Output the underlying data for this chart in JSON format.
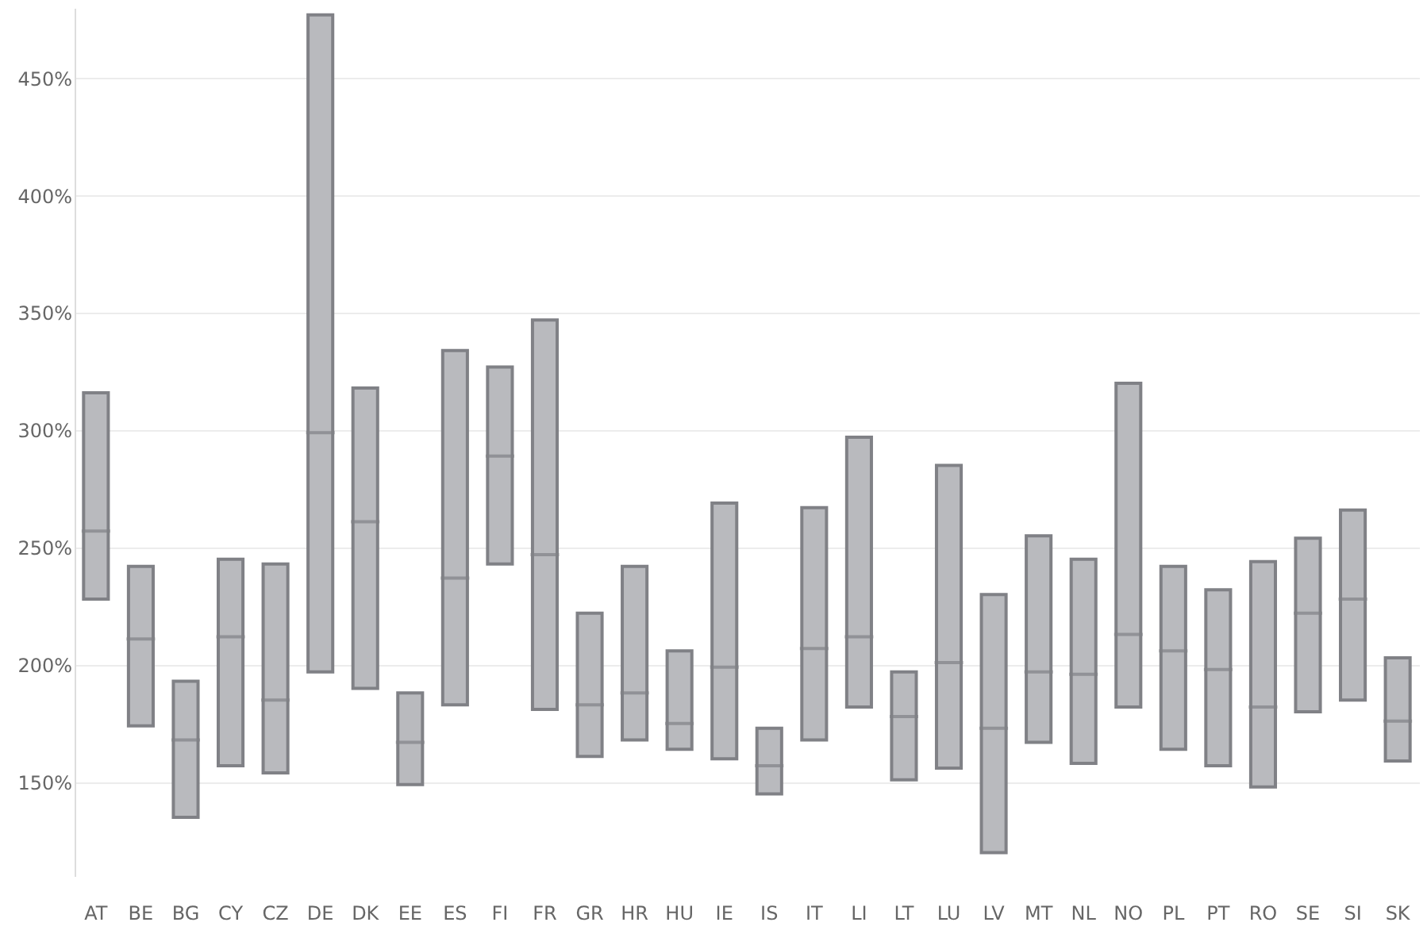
{
  "chart_data": {
    "type": "box",
    "categories": [
      "AT",
      "BE",
      "BG",
      "CY",
      "CZ",
      "DE",
      "DK",
      "EE",
      "ES",
      "FI",
      "FR",
      "GR",
      "HR",
      "HU",
      "IE",
      "IS",
      "IT",
      "LI",
      "LT",
      "LU",
      "LV",
      "MT",
      "NL",
      "NO",
      "PL",
      "PT",
      "RO",
      "SE",
      "SI",
      "SK"
    ],
    "color": "#b9babe",
    "boxes": [
      {
        "low": 228,
        "q1": 228,
        "median": 257,
        "q3": 316,
        "high": 316
      },
      {
        "low": 174,
        "q1": 174,
        "median": 211,
        "q3": 242,
        "high": 242
      },
      {
        "low": 135,
        "q1": 135,
        "median": 168,
        "q3": 193,
        "high": 193
      },
      {
        "low": 157,
        "q1": 157,
        "median": 212,
        "q3": 245,
        "high": 245
      },
      {
        "low": 154,
        "q1": 154,
        "median": 185,
        "q3": 243,
        "high": 243
      },
      {
        "low": 197,
        "q1": 197,
        "median": 299,
        "q3": 477,
        "high": 477
      },
      {
        "low": 190,
        "q1": 190,
        "median": 261,
        "q3": 318,
        "high": 318
      },
      {
        "low": 149,
        "q1": 149,
        "median": 167,
        "q3": 188,
        "high": 188
      },
      {
        "low": 183,
        "q1": 183,
        "median": 237,
        "q3": 334,
        "high": 334
      },
      {
        "low": 243,
        "q1": 243,
        "median": 289,
        "q3": 327,
        "high": 327
      },
      {
        "low": 181,
        "q1": 181,
        "median": 247,
        "q3": 347,
        "high": 347
      },
      {
        "low": 161,
        "q1": 161,
        "median": 183,
        "q3": 222,
        "high": 222
      },
      {
        "low": 168,
        "q1": 168,
        "median": 188,
        "q3": 242,
        "high": 242
      },
      {
        "low": 164,
        "q1": 164,
        "median": 175,
        "q3": 206,
        "high": 206
      },
      {
        "low": 160,
        "q1": 160,
        "median": 199,
        "q3": 269,
        "high": 269
      },
      {
        "low": 145,
        "q1": 145,
        "median": 157,
        "q3": 173,
        "high": 173
      },
      {
        "low": 168,
        "q1": 168,
        "median": 207,
        "q3": 267,
        "high": 267
      },
      {
        "low": 182,
        "q1": 182,
        "median": 212,
        "q3": 297,
        "high": 297
      },
      {
        "low": 151,
        "q1": 151,
        "median": 178,
        "q3": 197,
        "high": 197
      },
      {
        "low": 156,
        "q1": 156,
        "median": 201,
        "q3": 285,
        "high": 285
      },
      {
        "low": 120,
        "q1": 120,
        "median": 173,
        "q3": 230,
        "high": 230
      },
      {
        "low": 167,
        "q1": 167,
        "median": 197,
        "q3": 255,
        "high": 255
      },
      {
        "low": 158,
        "q1": 158,
        "median": 196,
        "q3": 245,
        "high": 245
      },
      {
        "low": 182,
        "q1": 182,
        "median": 213,
        "q3": 320,
        "high": 320
      },
      {
        "low": 164,
        "q1": 164,
        "median": 206,
        "q3": 242,
        "high": 242
      },
      {
        "low": 157,
        "q1": 157,
        "median": 198,
        "q3": 232,
        "high": 232
      },
      {
        "low": 148,
        "q1": 148,
        "median": 182,
        "q3": 244,
        "high": 244
      },
      {
        "low": 180,
        "q1": 180,
        "median": 222,
        "q3": 254,
        "high": 254
      },
      {
        "low": 185,
        "q1": 185,
        "median": 228,
        "q3": 266,
        "high": 266
      },
      {
        "low": 159,
        "q1": 159,
        "median": 176,
        "q3": 203,
        "high": 203
      }
    ],
    "ylim": [
      110,
      480
    ],
    "yticks": [
      {
        "value": 150,
        "label": "150%"
      },
      {
        "value": 200,
        "label": "200%"
      },
      {
        "value": 250,
        "label": "250%"
      },
      {
        "value": 300,
        "label": "300%"
      },
      {
        "value": 350,
        "label": "350%"
      },
      {
        "value": 400,
        "label": "400%"
      },
      {
        "value": 450,
        "label": "450%"
      }
    ],
    "grid": "y"
  }
}
